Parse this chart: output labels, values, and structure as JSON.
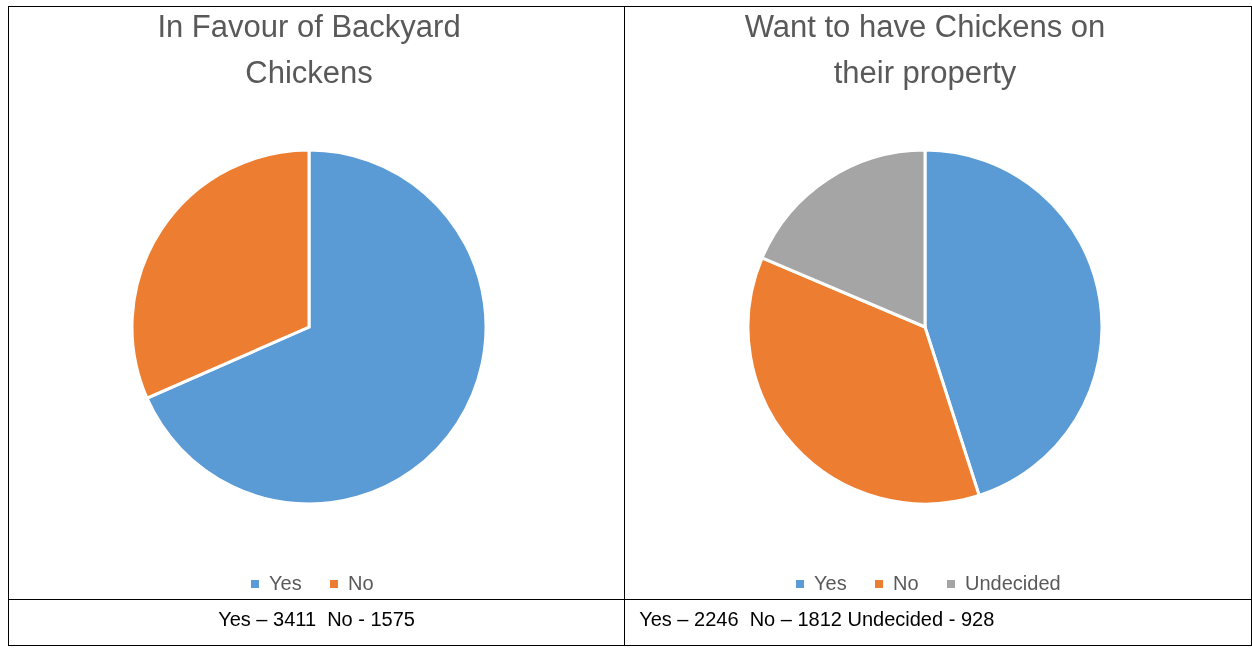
{
  "chart_data": [
    {
      "type": "pie",
      "title": "In Favour of Backyard Chickens",
      "categories": [
        "Yes",
        "No"
      ],
      "values": [
        68.41,
        31.59
      ],
      "colors": [
        "#5b9bd5",
        "#ed7d31"
      ],
      "legend": "bottom",
      "annotations": [
        "Yes – 3411  No - 1575"
      ]
    },
    {
      "type": "pie",
      "title": "Want to have Chickens on their property",
      "categories": [
        "Yes",
        "No",
        "Undecided"
      ],
      "values": [
        45.05,
        36.34,
        18.61
      ],
      "colors": [
        "#5b9bd5",
        "#ed7d31",
        "#a5a5a5"
      ],
      "legend": "bottom",
      "annotations": [
        "Yes – 2246  No – 1812 Undecided - 928"
      ]
    }
  ]
}
